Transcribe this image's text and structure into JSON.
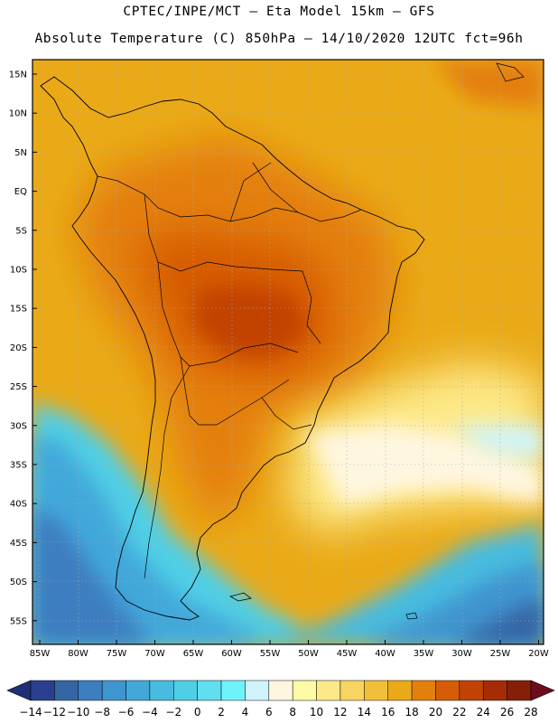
{
  "header": {
    "line1": "CPTEC/INPE/MCT –  Eta Model 15km – GFS",
    "line2": "Absolute Temperature (C) 850hPa – 14/10/2020 12UTC fct=96h"
  },
  "map": {
    "lon_labels": [
      "85W",
      "80W",
      "75W",
      "70W",
      "65W",
      "60W",
      "55W",
      "50W",
      "45W",
      "40W",
      "35W",
      "30W",
      "25W",
      "20W"
    ],
    "lat_labels": [
      "15N",
      "10N",
      "5N",
      "EQ",
      "5S",
      "10S",
      "15S",
      "20S",
      "25S",
      "30S",
      "35S",
      "40S",
      "45S",
      "50S",
      "55S"
    ],
    "lon_range": [
      -85,
      -20
    ],
    "lat_range": [
      -57,
      16
    ]
  },
  "colorbar": {
    "labels": [
      "-14",
      "-12",
      "-10",
      "-8",
      "-6",
      "-4",
      "-2",
      "0",
      "2",
      "4",
      "6",
      "8",
      "10",
      "12",
      "14",
      "16",
      "18",
      "20",
      "22",
      "24",
      "26",
      "28"
    ],
    "colors": [
      "#2a3f8f",
      "#3465a4",
      "#3c7ec0",
      "#3f95cf",
      "#42a8da",
      "#46bce0",
      "#4fcfe6",
      "#5fdff0",
      "#6ff3fb",
      "#d0f4fb",
      "#fff6e0",
      "#fffaa6",
      "#fde988",
      "#f8d460",
      "#f1bf3a",
      "#eaaa17",
      "#e47f0c",
      "#d65c06",
      "#c24206",
      "#a62c05",
      "#861f08"
    ],
    "low_arrow_color": "#1f2e78",
    "high_arrow_color": "#6e0c1e"
  }
}
